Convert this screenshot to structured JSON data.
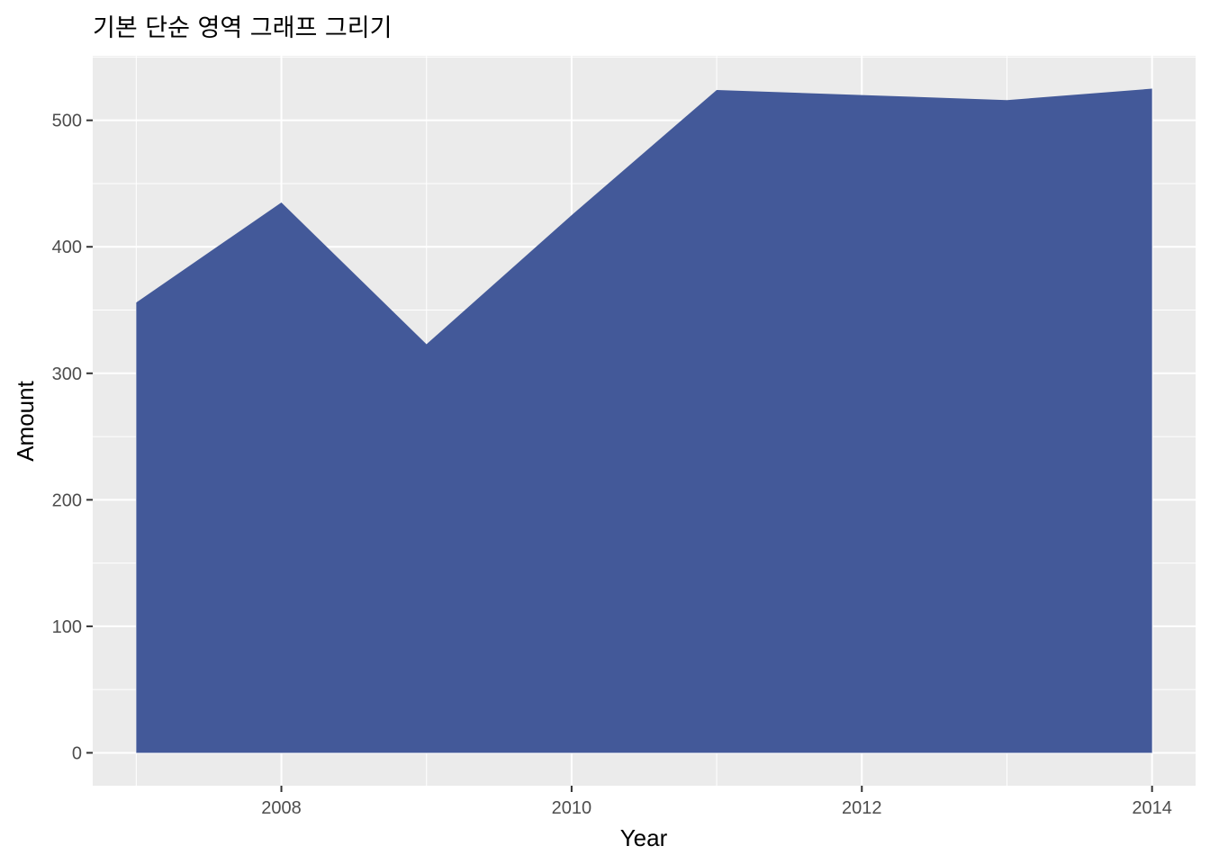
{
  "chart_data": {
    "type": "area",
    "title": "기본 단순 영역 그래프 그리기",
    "xlabel": "Year",
    "ylabel": "Amount",
    "x": [
      2007,
      2008,
      2009,
      2010,
      2011,
      2012,
      2013,
      2014
    ],
    "series": [
      {
        "values": [
          356,
          435,
          323,
          425,
          524,
          520,
          516,
          525
        ]
      }
    ],
    "xlim": [
      2006.7,
      2014.3
    ],
    "ylim": [
      -26,
      551
    ],
    "x_ticks": [
      2008,
      2010,
      2012,
      2014
    ],
    "x_tick_labels": [
      "2008",
      "2010",
      "2012",
      "2014"
    ],
    "y_ticks": [
      0,
      100,
      200,
      300,
      400,
      500
    ],
    "y_tick_labels": [
      "0",
      "100",
      "200",
      "300",
      "400",
      "500"
    ],
    "grid": true,
    "legend": "none",
    "colors": {
      "fill": "#3d5496",
      "panel_background": "#ebebeb",
      "grid": "#ffffff",
      "tick_label": "#4d4d4d",
      "tick_mark": "#333333",
      "text": "#000000"
    }
  }
}
